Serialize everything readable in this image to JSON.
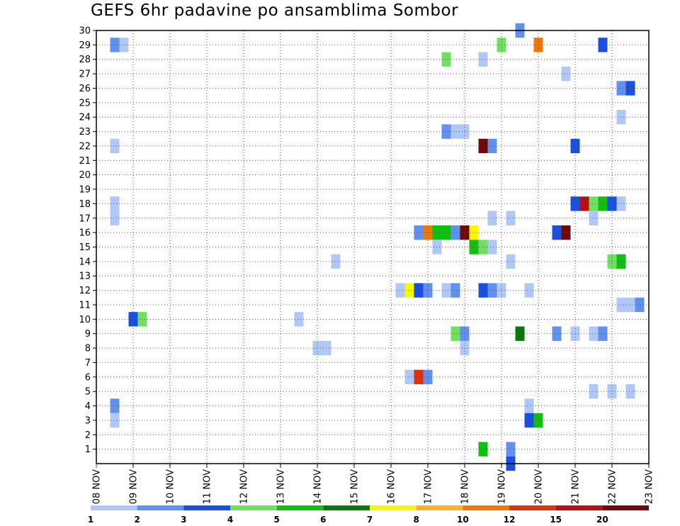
{
  "chart_data": {
    "type": "heatmap",
    "title": "GEFS 6hr padavine po ansamblima Sombor",
    "x_tick_labels": [
      "08 NOV",
      "09 NOV",
      "10 NOV",
      "11 NOV",
      "12 NOV",
      "13 NOV",
      "14 NOV",
      "15 NOV",
      "16 NOV",
      "17 NOV",
      "18 NOV",
      "19 NOV",
      "20 NOV",
      "21 NOV",
      "22 NOV",
      "23 NOV"
    ],
    "y_range": [
      0,
      30
    ],
    "y_tick_labels": [
      "1",
      "2",
      "3",
      "4",
      "5",
      "6",
      "7",
      "8",
      "9",
      "10",
      "11",
      "12",
      "13",
      "14",
      "15",
      "16",
      "17",
      "18",
      "19",
      "20",
      "21",
      "22",
      "23",
      "24",
      "25",
      "26",
      "27",
      "28",
      "29",
      "30"
    ],
    "grid": true,
    "colorbar": {
      "labels": [
        "1",
        "2",
        "3",
        "4",
        "5",
        "6",
        "7",
        "8",
        "10",
        "12",
        "15",
        "20"
      ],
      "colors": [
        "#b0c8f8",
        "#6090f0",
        "#1850e0",
        "#70e060",
        "#10c010",
        "#087808",
        "#f8f800",
        "#f8b030",
        "#f07808",
        "#e03010",
        "#b81010",
        "#700808"
      ]
    },
    "cells": [
      {
        "day": 8.5,
        "m": 29,
        "c": 1
      },
      {
        "day": 8.75,
        "m": 29,
        "c": 0
      },
      {
        "day": 8.5,
        "m": 22,
        "c": 0
      },
      {
        "day": 8.5,
        "m": 18,
        "c": 0
      },
      {
        "day": 8.5,
        "m": 17,
        "c": 0
      },
      {
        "day": 8.5,
        "m": 4,
        "c": 1
      },
      {
        "day": 8.5,
        "m": 3,
        "c": 0
      },
      {
        "day": 9.0,
        "m": 10,
        "c": 2
      },
      {
        "day": 9.25,
        "m": 10,
        "c": 3
      },
      {
        "day": 13.5,
        "m": 10,
        "c": 0
      },
      {
        "day": 14.0,
        "m": 8,
        "c": 0
      },
      {
        "day": 14.25,
        "m": 8,
        "c": 0
      },
      {
        "day": 14.5,
        "m": 14,
        "c": 0
      },
      {
        "day": 16.25,
        "m": 12,
        "c": 0
      },
      {
        "day": 16.5,
        "m": 12,
        "c": 6
      },
      {
        "day": 16.75,
        "m": 12,
        "c": 2
      },
      {
        "day": 17.0,
        "m": 12,
        "c": 1
      },
      {
        "day": 16.5,
        "m": 6,
        "c": 0
      },
      {
        "day": 16.75,
        "m": 6,
        "c": 9
      },
      {
        "day": 17.0,
        "m": 6,
        "c": 1
      },
      {
        "day": 16.75,
        "m": 16,
        "c": 1
      },
      {
        "day": 17.0,
        "m": 16,
        "c": 8
      },
      {
        "day": 17.25,
        "m": 16,
        "c": 4
      },
      {
        "day": 17.5,
        "m": 16,
        "c": 4
      },
      {
        "day": 17.75,
        "m": 16,
        "c": 1
      },
      {
        "day": 18.0,
        "m": 16,
        "c": 11
      },
      {
        "day": 18.25,
        "m": 16,
        "c": 6
      },
      {
        "day": 17.25,
        "m": 15,
        "c": 0
      },
      {
        "day": 17.5,
        "m": 28,
        "c": 3
      },
      {
        "day": 17.5,
        "m": 23,
        "c": 1
      },
      {
        "day": 17.75,
        "m": 23,
        "c": 0
      },
      {
        "day": 18.0,
        "m": 23,
        "c": 0
      },
      {
        "day": 17.5,
        "m": 12,
        "c": 0
      },
      {
        "day": 17.75,
        "m": 12,
        "c": 1
      },
      {
        "day": 17.75,
        "m": 9,
        "c": 3
      },
      {
        "day": 18.0,
        "m": 9,
        "c": 1
      },
      {
        "day": 18.0,
        "m": 8,
        "c": 0
      },
      {
        "day": 18.25,
        "m": 15,
        "c": 4
      },
      {
        "day": 18.5,
        "m": 15,
        "c": 3
      },
      {
        "day": 18.75,
        "m": 15,
        "c": 0
      },
      {
        "day": 18.5,
        "m": 28,
        "c": 0
      },
      {
        "day": 18.5,
        "m": 22,
        "c": 11
      },
      {
        "day": 18.75,
        "m": 22,
        "c": 1
      },
      {
        "day": 18.5,
        "m": 12,
        "c": 2
      },
      {
        "day": 18.75,
        "m": 12,
        "c": 1
      },
      {
        "day": 19.0,
        "m": 12,
        "c": 0
      },
      {
        "day": 18.75,
        "m": 17,
        "c": 0
      },
      {
        "day": 18.5,
        "m": 1,
        "c": 4
      },
      {
        "day": 19.0,
        "m": 29,
        "c": 3
      },
      {
        "day": 19.25,
        "m": 17,
        "c": 0
      },
      {
        "day": 19.25,
        "m": 14,
        "c": 0
      },
      {
        "day": 19.25,
        "m": 1,
        "c": 1
      },
      {
        "day": 19.25,
        "m": 0,
        "c": 2
      },
      {
        "day": 19.5,
        "m": 30,
        "c": 1
      },
      {
        "day": 19.5,
        "m": 9,
        "c": 5
      },
      {
        "day": 19.75,
        "m": 12,
        "c": 0
      },
      {
        "day": 19.75,
        "m": 4,
        "c": 0
      },
      {
        "day": 19.75,
        "m": 3,
        "c": 2
      },
      {
        "day": 20.0,
        "m": 3,
        "c": 4
      },
      {
        "day": 20.0,
        "m": 29,
        "c": 8
      },
      {
        "day": 20.5,
        "m": 16,
        "c": 2
      },
      {
        "day": 20.75,
        "m": 16,
        "c": 11
      },
      {
        "day": 20.5,
        "m": 9,
        "c": 1
      },
      {
        "day": 20.75,
        "m": 27,
        "c": 0
      },
      {
        "day": 21.0,
        "m": 22,
        "c": 2
      },
      {
        "day": 21.0,
        "m": 9,
        "c": 0
      },
      {
        "day": 21.0,
        "m": 18,
        "c": 2
      },
      {
        "day": 21.25,
        "m": 18,
        "c": 10
      },
      {
        "day": 21.5,
        "m": 18,
        "c": 3
      },
      {
        "day": 21.75,
        "m": 18,
        "c": 4
      },
      {
        "day": 22.0,
        "m": 18,
        "c": 2
      },
      {
        "day": 22.25,
        "m": 18,
        "c": 0
      },
      {
        "day": 21.5,
        "m": 17,
        "c": 0
      },
      {
        "day": 21.5,
        "m": 9,
        "c": 0
      },
      {
        "day": 21.75,
        "m": 9,
        "c": 1
      },
      {
        "day": 21.5,
        "m": 5,
        "c": 0
      },
      {
        "day": 21.75,
        "m": 29,
        "c": 2
      },
      {
        "day": 22.0,
        "m": 14,
        "c": 3
      },
      {
        "day": 22.25,
        "m": 14,
        "c": 4
      },
      {
        "day": 22.0,
        "m": 5,
        "c": 0
      },
      {
        "day": 22.25,
        "m": 24,
        "c": 0
      },
      {
        "day": 22.25,
        "m": 26,
        "c": 1
      },
      {
        "day": 22.5,
        "m": 26,
        "c": 2
      },
      {
        "day": 22.25,
        "m": 11,
        "c": 0
      },
      {
        "day": 22.5,
        "m": 11,
        "c": 0
      },
      {
        "day": 22.75,
        "m": 11,
        "c": 1
      },
      {
        "day": 22.5,
        "m": 5,
        "c": 0
      }
    ]
  }
}
